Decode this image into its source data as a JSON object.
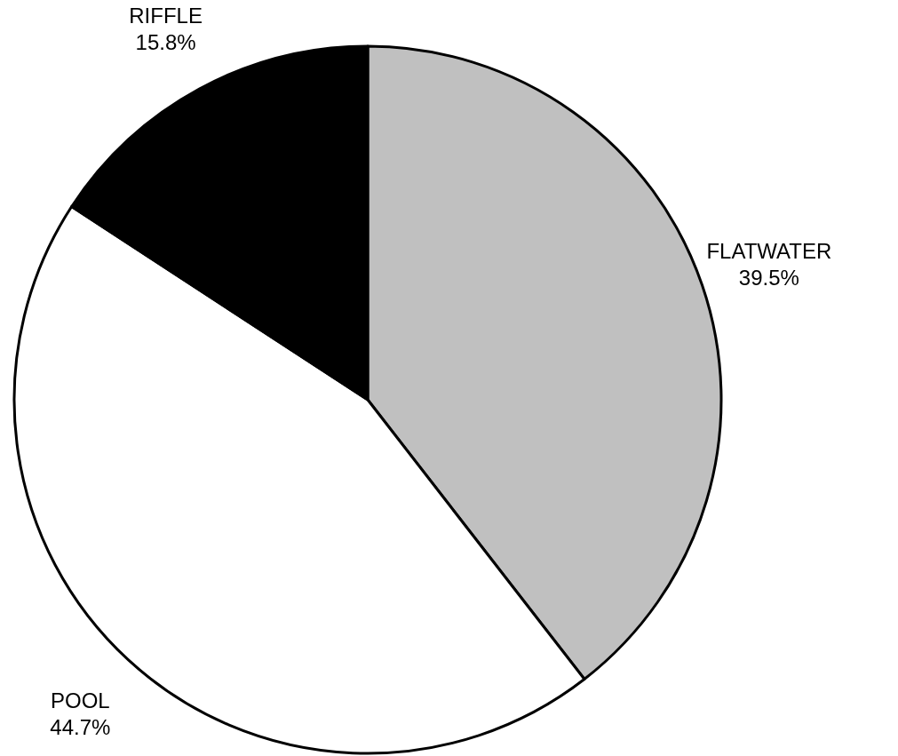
{
  "chart_data": {
    "type": "pie",
    "categories": [
      "FLATWATER",
      "POOL",
      "RIFFLE"
    ],
    "values": [
      39.5,
      44.7,
      15.8
    ],
    "colors": [
      "#c0c0c0",
      "#ffffff",
      "#000000"
    ],
    "value_labels": [
      "39.5%",
      "44.7%",
      "15.8%"
    ]
  }
}
